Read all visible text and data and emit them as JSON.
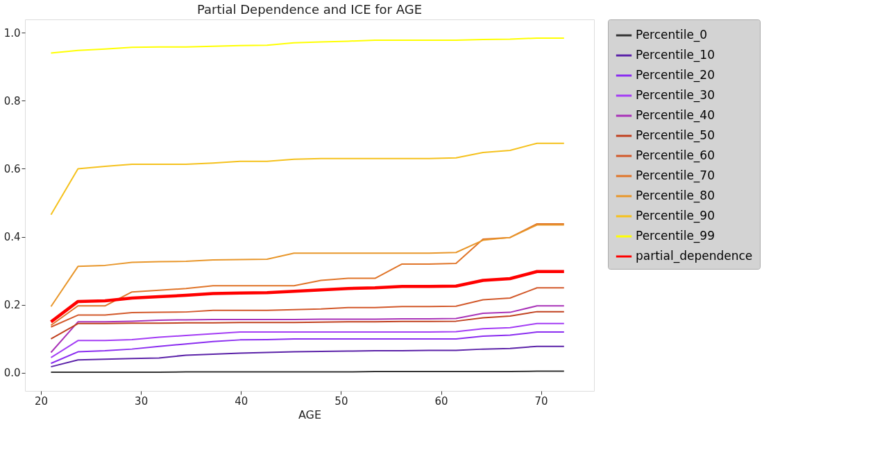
{
  "chart_data": {
    "type": "line",
    "title": "Partial Dependence and ICE for AGE",
    "xlabel": "AGE",
    "x": [
      21,
      23.7,
      26.4,
      29.1,
      31.8,
      34.5,
      37.2,
      39.9,
      42.6,
      45.3,
      48,
      50.7,
      53.4,
      56.1,
      58.8,
      61.5,
      64.2,
      66.9,
      69.6,
      72.3
    ],
    "xlim": [
      18.4,
      75.3
    ],
    "xticks": [
      20,
      30,
      40,
      50,
      60,
      70
    ],
    "ylim": [
      -0.053,
      1.039
    ],
    "yticks": [
      {
        "value": 0,
        "label": "0.0"
      },
      0.2,
      0.4,
      0.6,
      0.8,
      {
        "value": 1,
        "label": "1.0"
      }
    ],
    "grid": false,
    "legend": "right",
    "line_style": "solid",
    "marker": "none",
    "series": [
      {
        "name": "Percentile_0",
        "color": "#333333",
        "values": [
          0.002,
          0.002,
          0.002,
          0.002,
          0.002,
          0.003,
          0.003,
          0.003,
          0.003,
          0.003,
          0.003,
          0.003,
          0.004,
          0.004,
          0.004,
          0.004,
          0.004,
          0.004,
          0.005,
          0.005
        ]
      },
      {
        "name": "Percentile_10",
        "color": "#5b22a8",
        "values": [
          0.018,
          0.038,
          0.04,
          0.042,
          0.044,
          0.052,
          0.055,
          0.058,
          0.06,
          0.062,
          0.063,
          0.064,
          0.065,
          0.065,
          0.066,
          0.066,
          0.07,
          0.072,
          0.078,
          0.078
        ]
      },
      {
        "name": "Percentile_20",
        "color": "#8a2cf0",
        "values": [
          0.028,
          0.062,
          0.065,
          0.07,
          0.078,
          0.085,
          0.092,
          0.097,
          0.098,
          0.1,
          0.1,
          0.1,
          0.1,
          0.1,
          0.1,
          0.1,
          0.108,
          0.111,
          0.12,
          0.12
        ]
      },
      {
        "name": "Percentile_30",
        "color": "#a33cf5",
        "values": [
          0.045,
          0.095,
          0.095,
          0.098,
          0.105,
          0.11,
          0.115,
          0.12,
          0.12,
          0.12,
          0.12,
          0.12,
          0.12,
          0.12,
          0.12,
          0.121,
          0.13,
          0.133,
          0.145,
          0.145
        ]
      },
      {
        "name": "Percentile_40",
        "color": "#a832b8",
        "values": [
          0.06,
          0.15,
          0.15,
          0.152,
          0.155,
          0.156,
          0.157,
          0.157,
          0.157,
          0.157,
          0.158,
          0.158,
          0.158,
          0.159,
          0.159,
          0.16,
          0.175,
          0.178,
          0.197,
          0.197
        ]
      },
      {
        "name": "Percentile_50",
        "color": "#c0401e",
        "values": [
          0.1,
          0.145,
          0.145,
          0.146,
          0.146,
          0.147,
          0.147,
          0.148,
          0.148,
          0.148,
          0.149,
          0.15,
          0.15,
          0.151,
          0.151,
          0.152,
          0.162,
          0.167,
          0.18,
          0.18
        ]
      },
      {
        "name": "Percentile_60",
        "color": "#d2582a",
        "values": [
          0.135,
          0.17,
          0.17,
          0.177,
          0.178,
          0.179,
          0.184,
          0.184,
          0.184,
          0.186,
          0.188,
          0.192,
          0.192,
          0.195,
          0.195,
          0.196,
          0.215,
          0.22,
          0.25,
          0.25
        ]
      },
      {
        "name": "Percentile_70",
        "color": "#e07428",
        "values": [
          0.14,
          0.197,
          0.197,
          0.238,
          0.243,
          0.248,
          0.256,
          0.256,
          0.256,
          0.256,
          0.272,
          0.278,
          0.278,
          0.32,
          0.32,
          0.322,
          0.393,
          0.398,
          0.438,
          0.438
        ]
      },
      {
        "name": "Percentile_80",
        "color": "#e8962a",
        "values": [
          0.195,
          0.313,
          0.316,
          0.325,
          0.327,
          0.328,
          0.332,
          0.333,
          0.334,
          0.352,
          0.352,
          0.352,
          0.352,
          0.352,
          0.352,
          0.354,
          0.39,
          0.398,
          0.435,
          0.435
        ]
      },
      {
        "name": "Percentile_90",
        "color": "#f5c11c",
        "values": [
          0.465,
          0.6,
          0.607,
          0.613,
          0.613,
          0.613,
          0.617,
          0.622,
          0.622,
          0.628,
          0.63,
          0.63,
          0.63,
          0.63,
          0.63,
          0.632,
          0.648,
          0.654,
          0.675,
          0.675
        ]
      },
      {
        "name": "Percentile_99",
        "color": "#ffff00",
        "values": [
          0.94,
          0.948,
          0.952,
          0.957,
          0.958,
          0.958,
          0.96,
          0.962,
          0.963,
          0.97,
          0.973,
          0.975,
          0.978,
          0.978,
          0.978,
          0.978,
          0.98,
          0.981,
          0.984,
          0.984
        ]
      },
      {
        "name": "partial_dependence",
        "color": "#ff0000",
        "values": [
          0.15,
          0.21,
          0.212,
          0.22,
          0.224,
          0.228,
          0.233,
          0.235,
          0.236,
          0.24,
          0.244,
          0.248,
          0.25,
          0.254,
          0.254,
          0.255,
          0.272,
          0.277,
          0.298,
          0.298
        ]
      }
    ]
  }
}
